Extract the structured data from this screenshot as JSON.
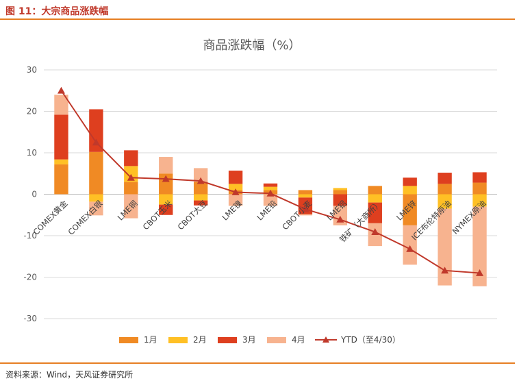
{
  "figure_title": "图 11：大宗商品涨跌幅",
  "source_note": "资料来源：Wind，天风证券研究所",
  "colors": {
    "jan": "#f08a24",
    "feb": "#ffc025",
    "mar": "#de3f1f",
    "apr": "#f7b38f",
    "ytd": "#c0392b",
    "rule": "#e67e22",
    "grid": "#d9d9d9"
  },
  "chart_data": {
    "type": "bar",
    "stacked": true,
    "title": "商品涨跌幅（%）",
    "xlabel": "",
    "ylabel": "",
    "ylim": [
      -30,
      30
    ],
    "yticks": [
      30,
      20,
      10,
      0,
      -10,
      -20,
      -30
    ],
    "grid": true,
    "legend_position": "bottom",
    "categories": [
      "COMEX黄金",
      "COMEX白银",
      "LME铜",
      "CBOT玉米",
      "CBOT大豆",
      "LME镍",
      "LME铅",
      "CBOT小麦",
      "LME铝",
      "铁矿（大商所）",
      "LME锌",
      "ICE布伦特原油",
      "NYMEX原油"
    ],
    "series": [
      {
        "name": "1月",
        "type": "bar",
        "values": [
          7.2,
          10.2,
          3.0,
          5.0,
          3.0,
          1.0,
          1.0,
          1.0,
          1.0,
          2.0,
          -7.5,
          2.5,
          2.8
        ]
      },
      {
        "name": "2月",
        "type": "bar",
        "values": [
          1.2,
          -1.8,
          3.8,
          -2.5,
          -1.5,
          1.5,
          0.8,
          -0.8,
          0.5,
          -2.0,
          2.0,
          -3.5,
          -3.0
        ]
      },
      {
        "name": "3月",
        "type": "bar",
        "values": [
          10.8,
          10.3,
          3.8,
          -2.5,
          -1.2,
          3.2,
          0.8,
          -4.0,
          -2.8,
          -5.0,
          2.0,
          2.7,
          2.5
        ]
      },
      {
        "name": "4月",
        "type": "bar",
        "values": [
          4.8,
          -3.3,
          -5.8,
          4.0,
          3.3,
          -2.8,
          -2.8,
          -0.3,
          -4.7,
          -5.5,
          -9.5,
          -18.5,
          -19.2
        ]
      },
      {
        "name": "YTD（至4/30）",
        "type": "line",
        "values": [
          25.0,
          12.5,
          4.0,
          3.7,
          3.2,
          0.5,
          0.2,
          -3.6,
          -6.1,
          -9.1,
          -13.2,
          -18.4,
          -19.0
        ]
      }
    ]
  }
}
